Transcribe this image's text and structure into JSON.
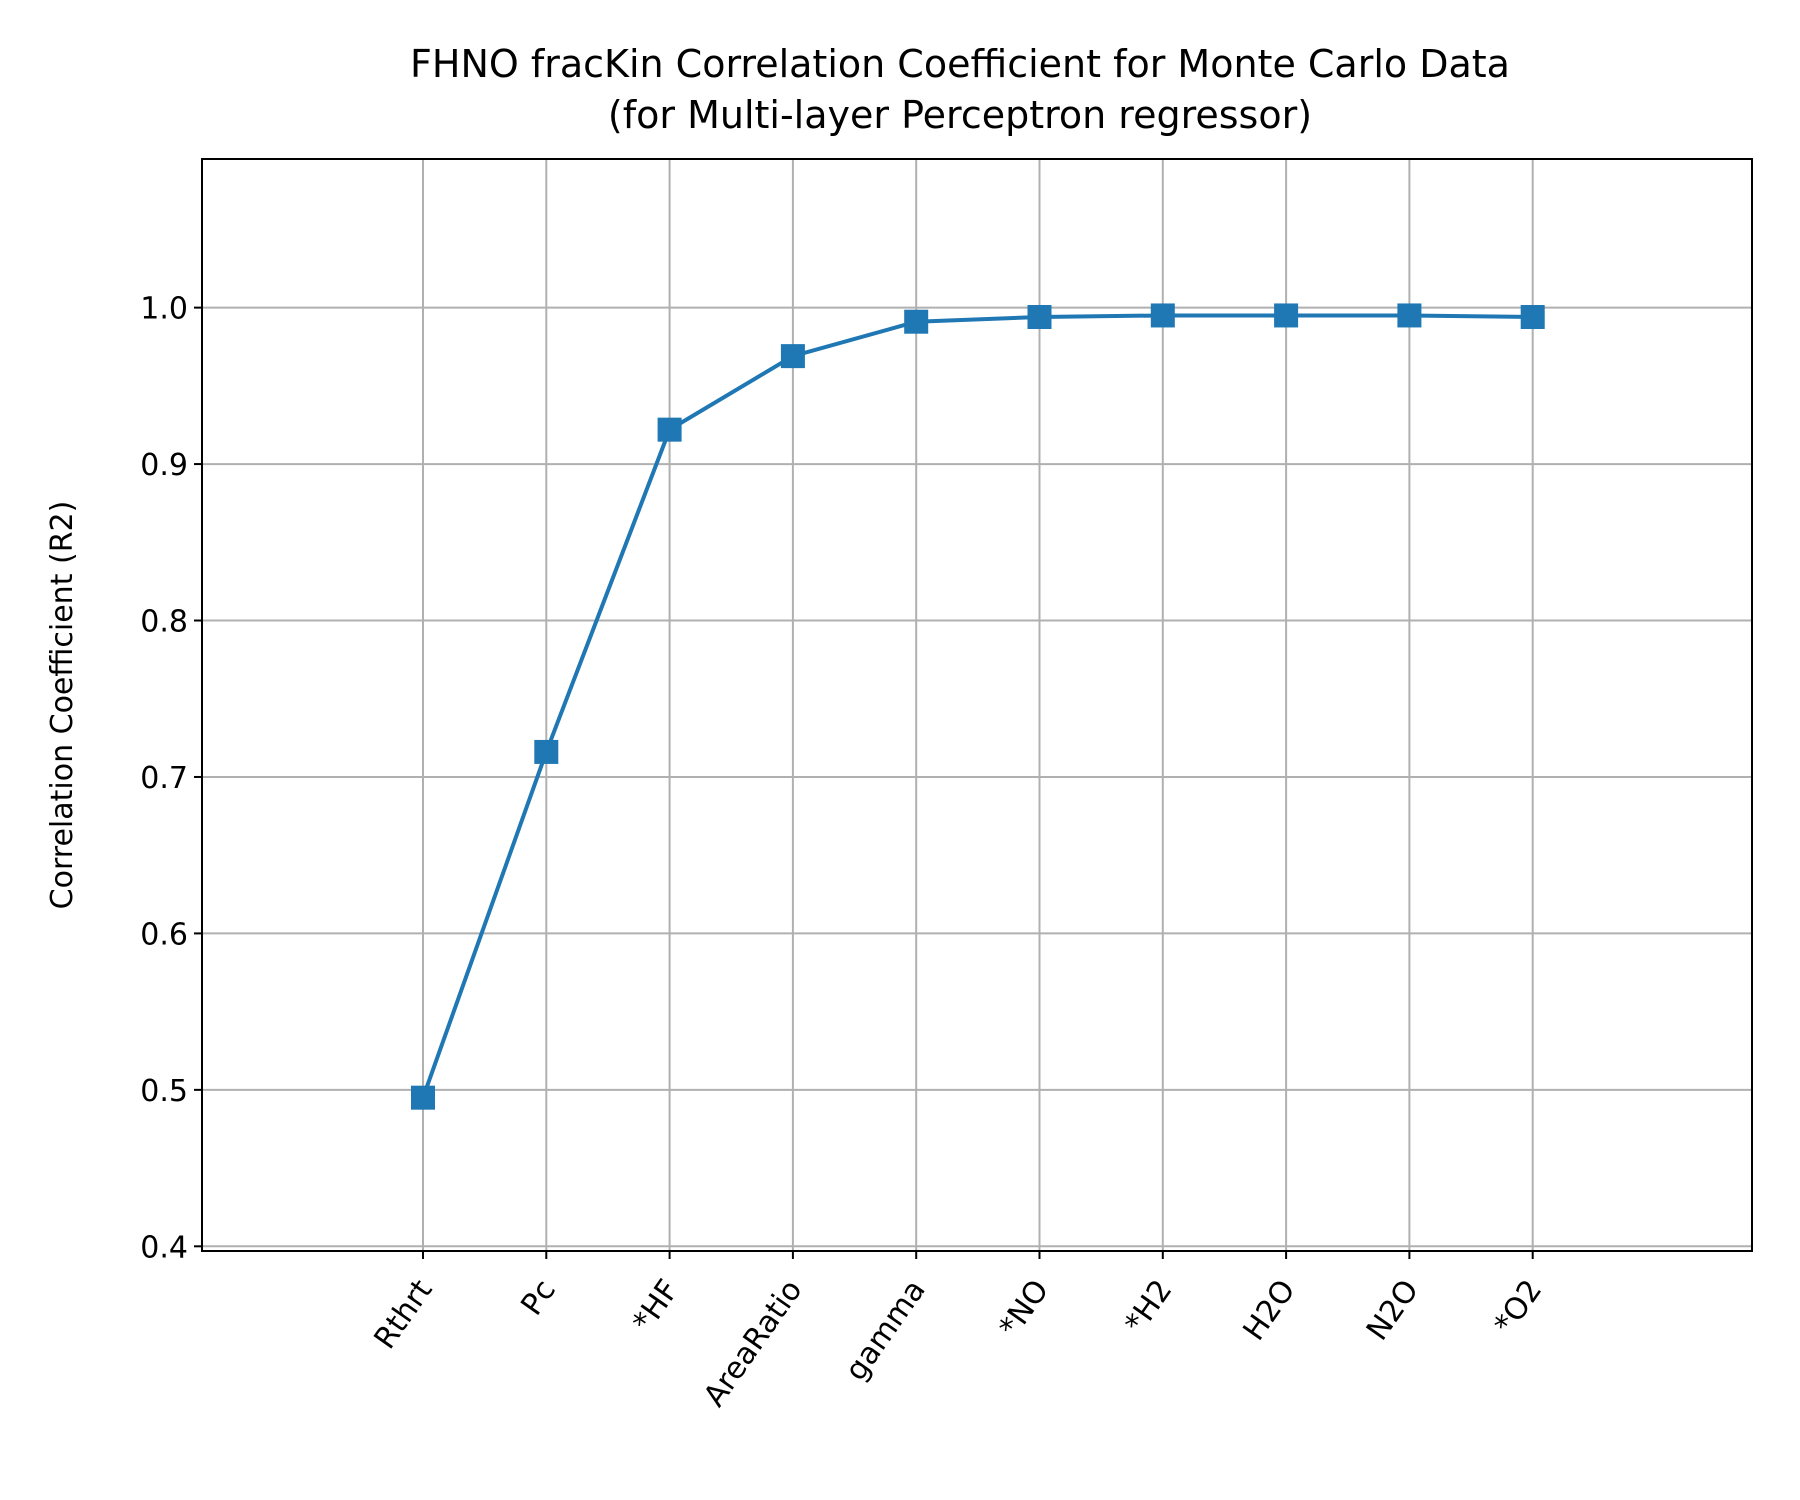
{
  "chart_data": {
    "type": "line",
    "title": "FHNO fracKin Correlation Coefficient for Monte Carlo Data",
    "subtitle": "(for Multi-layer Perceptron regressor)",
    "xlabel": "",
    "ylabel": "Correlation Coefficient (R2)",
    "categories": [
      "Rthrt",
      "Pc",
      "*HF",
      "AreaRatio",
      "gamma",
      "*NO",
      "*H2",
      "H2O",
      "N2O",
      "*O2"
    ],
    "series": [
      {
        "values": [
          0.495,
          0.716,
          0.922,
          0.969,
          0.991,
          0.994,
          0.995,
          0.995,
          0.995,
          0.994
        ]
      }
    ],
    "ylim": [
      0.397,
      1.095
    ],
    "yticks": [
      "0.4",
      "0.5",
      "0.6",
      "0.7",
      "0.8",
      "0.9",
      "1.0"
    ],
    "grid": true,
    "marker": "square",
    "color": "#1f77b4"
  }
}
